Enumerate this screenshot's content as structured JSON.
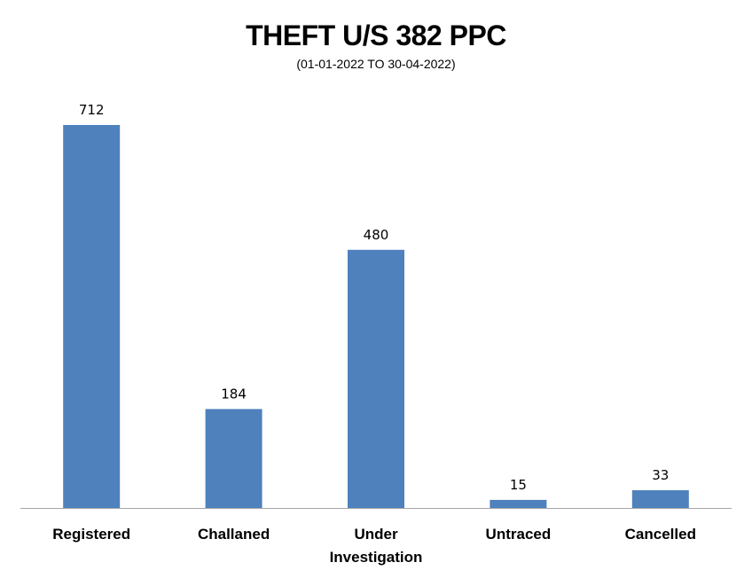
{
  "chart_data": {
    "type": "bar",
    "title": "THEFT U/S 382 PPC",
    "subtitle": "(01-01-2022 TO 30-04-2022)",
    "categories": [
      [
        "Registered"
      ],
      [
        "Challaned"
      ],
      [
        "Under",
        "Investigation"
      ],
      [
        "Untraced"
      ],
      [
        "Cancelled"
      ]
    ],
    "values": [
      712,
      184,
      480,
      15,
      33
    ],
    "xlabel": "",
    "ylabel": "",
    "ylim": [
      0,
      720
    ],
    "grid": false,
    "legend": "none",
    "bar_color": "#4F81BD",
    "axis_color": "#A6A6A6"
  }
}
